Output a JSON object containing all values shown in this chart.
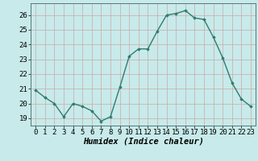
{
  "x": [
    0,
    1,
    2,
    3,
    4,
    5,
    6,
    7,
    8,
    9,
    10,
    11,
    12,
    13,
    14,
    15,
    16,
    17,
    18,
    19,
    20,
    21,
    22,
    23
  ],
  "y": [
    20.9,
    20.4,
    20.0,
    19.1,
    20.0,
    19.8,
    19.5,
    18.8,
    19.1,
    21.1,
    23.2,
    23.7,
    23.7,
    24.9,
    26.0,
    26.1,
    26.3,
    25.8,
    25.7,
    24.5,
    23.1,
    21.4,
    20.3,
    19.8
  ],
  "line_color": "#2e7d6e",
  "marker": "D",
  "marker_size": 1.8,
  "line_width": 1.0,
  "xlabel": "Humidex (Indice chaleur)",
  "xlim": [
    -0.5,
    23.5
  ],
  "ylim": [
    18.5,
    26.8
  ],
  "yticks": [
    19,
    20,
    21,
    22,
    23,
    24,
    25,
    26
  ],
  "xticks": [
    0,
    1,
    2,
    3,
    4,
    5,
    6,
    7,
    8,
    9,
    10,
    11,
    12,
    13,
    14,
    15,
    16,
    17,
    18,
    19,
    20,
    21,
    22,
    23
  ],
  "bg_color": "#c8eaea",
  "grid_color": "#c8a8a8",
  "tick_label_fontsize": 6.5,
  "xlabel_fontsize": 7.5
}
